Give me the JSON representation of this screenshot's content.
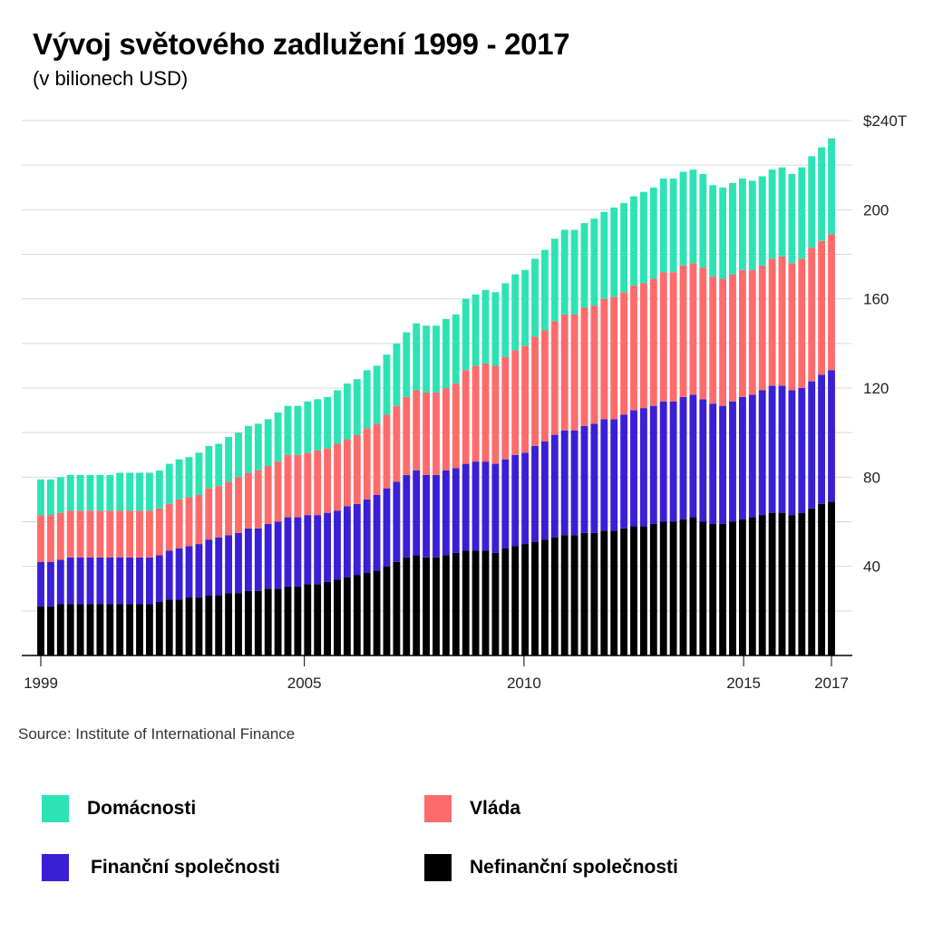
{
  "title": "Vývoj světového zadlužení 1999 - 2017",
  "subtitle": "(v bilionech USD)",
  "source": "Source: Institute of International Finance",
  "legend": [
    {
      "label": "Domácnosti",
      "color": "#2de3b4"
    },
    {
      "label": "Vláda",
      "color": "#ff6b6b"
    },
    {
      "label": "Finanční společnosti",
      "color": "#3a1fd6"
    },
    {
      "label": "Nefinanční společnosti",
      "color": "#000000"
    }
  ],
  "chart_data": {
    "type": "bar",
    "stacked": true,
    "y_tick_labels": [
      "40",
      "80",
      "120",
      "160",
      "200",
      "$240T"
    ],
    "y_ticks": [
      40,
      80,
      120,
      160,
      200,
      240
    ],
    "ylim": [
      0,
      240
    ],
    "x_tick_labels": [
      "1999",
      "2005",
      "2010",
      "2015",
      "2017"
    ],
    "x_ticks": [
      1999,
      2005,
      2010,
      2015,
      2017
    ],
    "x_start": 1999,
    "x_end": 2017,
    "grid": true,
    "series": [
      {
        "name": "Nefinanční společnosti",
        "color": "#000000",
        "values": [
          22,
          22,
          23,
          23,
          23,
          23,
          23,
          23,
          23,
          23,
          23,
          23,
          24,
          25,
          25,
          26,
          26,
          27,
          27,
          28,
          28,
          29,
          29,
          30,
          30,
          31,
          31,
          32,
          32,
          33,
          34,
          35,
          36,
          37,
          38,
          40,
          42,
          44,
          45,
          44,
          44,
          45,
          46,
          47,
          47,
          47,
          46,
          48,
          49,
          50,
          51,
          52,
          53,
          54,
          54,
          55,
          55,
          56,
          56,
          57,
          58,
          58,
          59,
          60,
          60,
          61,
          62,
          60,
          59,
          59,
          60,
          61,
          62,
          63,
          64,
          64,
          63,
          64,
          66,
          68,
          69
        ]
      },
      {
        "name": "Finanční společnosti",
        "color": "#3a1fd6",
        "values": [
          20,
          20,
          20,
          21,
          21,
          21,
          21,
          21,
          21,
          21,
          21,
          21,
          21,
          22,
          23,
          23,
          24,
          25,
          26,
          26,
          27,
          28,
          28,
          29,
          30,
          31,
          31,
          31,
          31,
          31,
          31,
          32,
          32,
          33,
          34,
          35,
          36,
          37,
          38,
          37,
          37,
          38,
          38,
          39,
          40,
          40,
          40,
          40,
          41,
          41,
          43,
          44,
          46,
          47,
          47,
          48,
          49,
          50,
          50,
          51,
          52,
          53,
          53,
          54,
          54,
          55,
          55,
          55,
          54,
          53,
          54,
          55,
          55,
          56,
          57,
          57,
          56,
          56,
          57,
          58,
          59
        ]
      },
      {
        "name": "Vláda",
        "color": "#ff6b6b",
        "values": [
          21,
          21,
          21,
          21,
          21,
          21,
          21,
          21,
          21,
          21,
          21,
          21,
          21,
          21,
          22,
          22,
          22,
          23,
          23,
          24,
          25,
          25,
          26,
          26,
          27,
          28,
          28,
          28,
          29,
          29,
          30,
          30,
          31,
          32,
          32,
          33,
          34,
          35,
          36,
          37,
          37,
          37,
          38,
          42,
          43,
          44,
          44,
          46,
          47,
          48,
          49,
          50,
          51,
          52,
          52,
          53,
          53,
          54,
          55,
          55,
          56,
          56,
          57,
          58,
          58,
          59,
          59,
          59,
          57,
          57,
          57,
          57,
          56,
          56,
          57,
          58,
          57,
          58,
          60,
          60,
          61
        ]
      },
      {
        "name": "Domácnosti",
        "color": "#2de3b4",
        "values": [
          16,
          16,
          16,
          16,
          16,
          16,
          16,
          16,
          17,
          17,
          17,
          17,
          17,
          18,
          18,
          18,
          19,
          19,
          19,
          20,
          20,
          21,
          21,
          21,
          22,
          22,
          22,
          23,
          23,
          23,
          24,
          25,
          25,
          26,
          26,
          27,
          28,
          29,
          30,
          30,
          30,
          31,
          31,
          32,
          32,
          33,
          33,
          33,
          34,
          34,
          35,
          36,
          37,
          38,
          38,
          38,
          39,
          39,
          40,
          40,
          40,
          41,
          41,
          42,
          42,
          42,
          42,
          42,
          41,
          41,
          41,
          41,
          40,
          40,
          40,
          40,
          40,
          41,
          41,
          42,
          43
        ]
      }
    ]
  }
}
